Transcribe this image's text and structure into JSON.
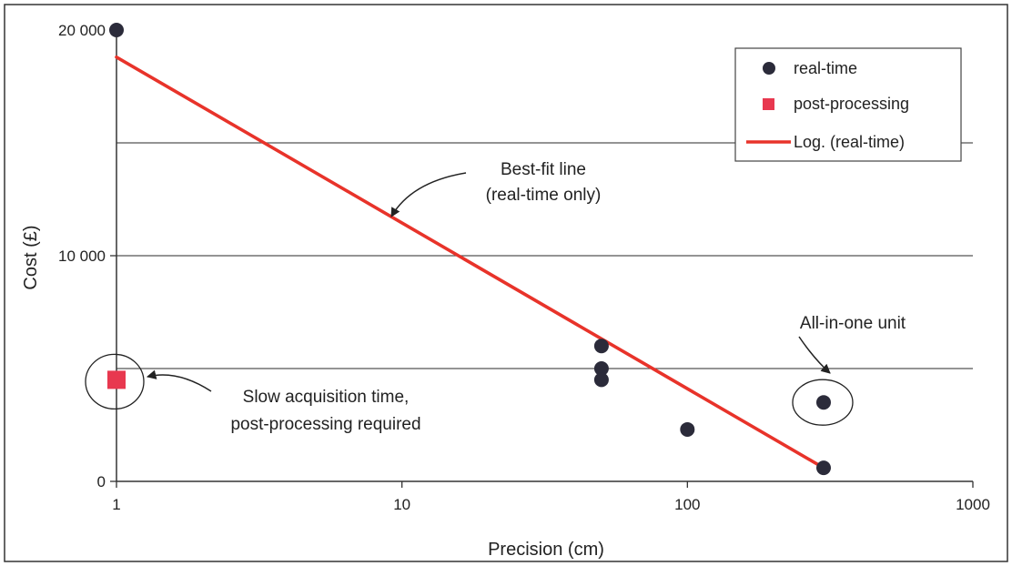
{
  "chart_data": {
    "type": "scatter",
    "title": "",
    "xlabel": "Precision (cm)",
    "ylabel": "Cost (£)",
    "x_scale": "log",
    "xlim": [
      1,
      1000
    ],
    "ylim": [
      0,
      20000
    ],
    "x_ticks": [
      1,
      10,
      100,
      1000
    ],
    "x_tick_labels": [
      "1",
      "10",
      "100",
      "1000"
    ],
    "y_ticks": [
      0,
      10000,
      20000
    ],
    "y_tick_labels": [
      "0",
      "10 000",
      "20 000"
    ],
    "grid": "horizontal lines",
    "gridline_values": [
      5000,
      10000,
      15000
    ],
    "legend_position": "top-right",
    "colors": {
      "real_time": "#2b2b3a",
      "post_processing": "#e8384f",
      "trendline": "#e8332a",
      "axis": "#333333",
      "grid": "#555555"
    },
    "series": [
      {
        "name": "real-time",
        "marker": "circle",
        "points": [
          {
            "x": 1,
            "y": 20000
          },
          {
            "x": 50,
            "y": 6000
          },
          {
            "x": 50,
            "y": 5000
          },
          {
            "x": 50,
            "y": 4500
          },
          {
            "x": 100,
            "y": 2300
          },
          {
            "x": 300,
            "y": 3500
          },
          {
            "x": 300,
            "y": 600
          }
        ]
      },
      {
        "name": "post-processing",
        "marker": "square",
        "points": [
          {
            "x": 1,
            "y": 4500
          }
        ]
      },
      {
        "name": "Log. (real-time)",
        "type": "line",
        "points": [
          {
            "x": 1,
            "y": 18800
          },
          {
            "x": 300,
            "y": 600
          }
        ]
      }
    ],
    "annotations": [
      {
        "lines": [
          "Best-fit line",
          "(real-time only)"
        ],
        "points_to": {
          "x": 9.5,
          "y": 11700
        }
      },
      {
        "lines": [
          "Slow acquisition time,",
          "post-processing required"
        ],
        "points_to": {
          "x": 1,
          "y": 4500
        }
      },
      {
        "lines": [
          "All-in-one unit"
        ],
        "points_to": {
          "x": 300,
          "y": 3500
        }
      }
    ]
  }
}
